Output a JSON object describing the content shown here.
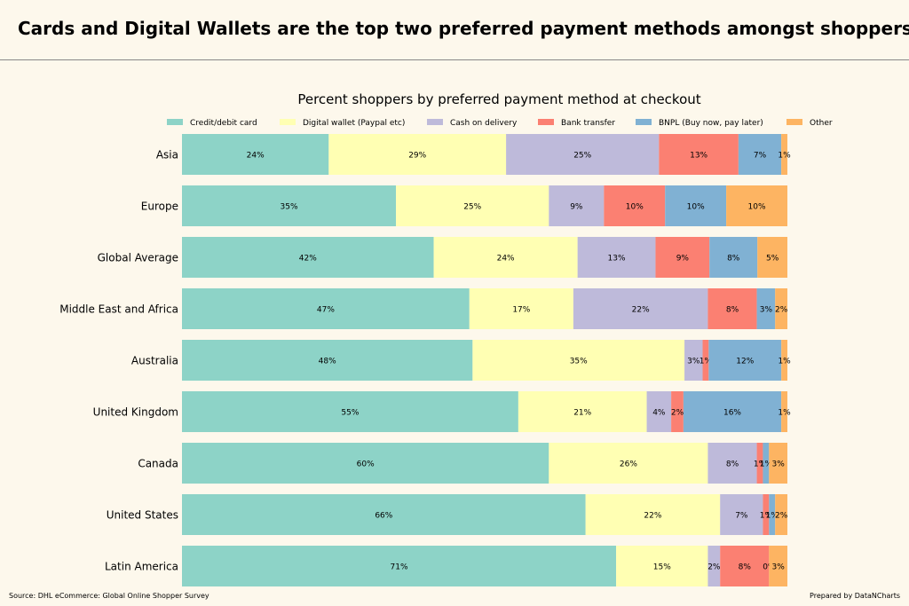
{
  "headline": "Cards and Digital Wallets are the top two preferred payment methods amongst shoppers",
  "source": "Source: DHL eCommerce: Global Online Shopper Survey",
  "credit": "Prepared by DataNCharts",
  "chart_data": {
    "type": "bar",
    "orientation": "horizontal",
    "stacked": true,
    "title": "Percent shoppers by preferred payment method at checkout",
    "legend_position": "top",
    "categories": [
      "Asia",
      "Europe",
      "Global Average",
      "Middle East and Africa",
      "Australia",
      "United Kingdom",
      "Canada",
      "United States",
      "Latin America"
    ],
    "series": [
      {
        "name": "Credit/debit card",
        "color": "#8dd3c7",
        "values": [
          24,
          35,
          42,
          47,
          48,
          55,
          60,
          66,
          71
        ]
      },
      {
        "name": "Digital wallet (Paypal etc)",
        "color": "#ffffb3",
        "values": [
          29,
          25,
          24,
          17,
          35,
          21,
          26,
          22,
          15
        ]
      },
      {
        "name": "Cash on delivery",
        "color": "#bebada",
        "values": [
          25,
          9,
          13,
          22,
          3,
          4,
          8,
          7,
          2
        ]
      },
      {
        "name": "Bank transfer",
        "color": "#fb8072",
        "values": [
          13,
          10,
          9,
          8,
          1,
          2,
          1,
          1,
          8
        ]
      },
      {
        "name": "BNPL (Buy now, pay later)",
        "color": "#80b1d3",
        "values": [
          7,
          10,
          8,
          3,
          12,
          16,
          1,
          1,
          0
        ]
      },
      {
        "name": "Other",
        "color": "#fdb462",
        "values": [
          1,
          10,
          5,
          2,
          1,
          1,
          3,
          2,
          3
        ]
      }
    ],
    "value_suffix": "%"
  }
}
